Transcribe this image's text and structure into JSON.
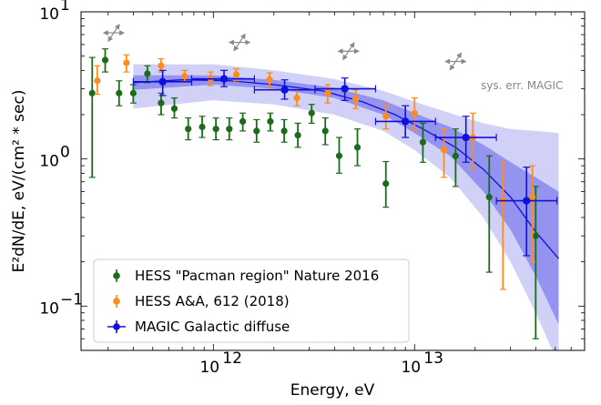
{
  "chart_data": {
    "type": "scatter",
    "xlabel": "Energy, eV",
    "ylabel": "E²dN/dE, eV/(cm² * sec)",
    "xscale": "log",
    "yscale": "log",
    "xlim": [
      220000000000.0,
      70000000000000.0
    ],
    "ylim": [
      0.05,
      10
    ],
    "x_ticks": [
      {
        "value": 1000000000000.0,
        "label": "10",
        "exp": "12"
      },
      {
        "value": 10000000000000.0,
        "label": "10",
        "exp": "13"
      }
    ],
    "y_ticks": [
      {
        "value": 0.1,
        "label": "10",
        "exp": "−1"
      },
      {
        "value": 1,
        "label": "10",
        "exp": "0"
      },
      {
        "value": 10,
        "label": "10",
        "exp": "1"
      }
    ],
    "legend_position": "lower-left",
    "annotation": "sys. err. MAGIC",
    "series": [
      {
        "name": "HESS \"Pacman region\" Nature 2016",
        "color": "#1a6b1a",
        "points": [
          {
            "x": 250000000000.0,
            "y": 2.8,
            "ylo": 0.75,
            "yhi": 4.9
          },
          {
            "x": 290000000000.0,
            "y": 4.7,
            "ylo": 3.9,
            "yhi": 5.6
          },
          {
            "x": 340000000000.0,
            "y": 2.8,
            "ylo": 2.3,
            "yhi": 3.4
          },
          {
            "x": 400000000000.0,
            "y": 2.8,
            "ylo": 2.4,
            "yhi": 3.2
          },
          {
            "x": 470000000000.0,
            "y": 3.8,
            "ylo": 3.3,
            "yhi": 4.3
          },
          {
            "x": 550000000000.0,
            "y": 2.4,
            "ylo": 2.0,
            "yhi": 2.8
          },
          {
            "x": 640000000000.0,
            "y": 2.2,
            "ylo": 1.9,
            "yhi": 2.6
          },
          {
            "x": 750000000000.0,
            "y": 1.6,
            "ylo": 1.35,
            "yhi": 1.9
          },
          {
            "x": 880000000000.0,
            "y": 1.65,
            "ylo": 1.4,
            "yhi": 1.95
          },
          {
            "x": 1030000000000.0,
            "y": 1.6,
            "ylo": 1.35,
            "yhi": 1.9
          },
          {
            "x": 1200000000000.0,
            "y": 1.6,
            "ylo": 1.35,
            "yhi": 1.9
          },
          {
            "x": 1400000000000.0,
            "y": 1.8,
            "ylo": 1.55,
            "yhi": 2.05
          },
          {
            "x": 1640000000000.0,
            "y": 1.55,
            "ylo": 1.3,
            "yhi": 1.85
          },
          {
            "x": 1920000000000.0,
            "y": 1.8,
            "ylo": 1.55,
            "yhi": 2.05
          },
          {
            "x": 2250000000000.0,
            "y": 1.55,
            "ylo": 1.3,
            "yhi": 1.85
          },
          {
            "x": 2630000000000.0,
            "y": 1.45,
            "ylo": 1.2,
            "yhi": 1.75
          },
          {
            "x": 3080000000000.0,
            "y": 2.05,
            "ylo": 1.75,
            "yhi": 2.35
          },
          {
            "x": 3600000000000.0,
            "y": 1.55,
            "ylo": 1.25,
            "yhi": 1.9
          },
          {
            "x": 4220000000000.0,
            "y": 1.05,
            "ylo": 0.8,
            "yhi": 1.4
          },
          {
            "x": 5200000000000.0,
            "y": 1.2,
            "ylo": 0.9,
            "yhi": 1.6
          },
          {
            "x": 7200000000000.0,
            "y": 0.68,
            "ylo": 0.47,
            "yhi": 0.96
          },
          {
            "x": 11000000000000.0,
            "y": 1.3,
            "ylo": 0.95,
            "yhi": 1.75
          },
          {
            "x": 16000000000000.0,
            "y": 1.05,
            "ylo": 0.65,
            "yhi": 1.6
          },
          {
            "x": 23500000000000.0,
            "y": 0.55,
            "ylo": 0.17,
            "yhi": 1.05
          },
          {
            "x": 40000000000000.0,
            "y": 0.3,
            "ylo": 0.06,
            "yhi": 0.65
          }
        ]
      },
      {
        "name": "HESS A&A, 612 (2018)",
        "color": "#ff8c1a",
        "points": [
          {
            "x": 265000000000.0,
            "y": 3.4,
            "ylo": 2.75,
            "yhi": 4.3
          },
          {
            "x": 370000000000.0,
            "y": 4.5,
            "ylo": 3.9,
            "yhi": 5.1
          },
          {
            "x": 550000000000.0,
            "y": 4.3,
            "ylo": 3.9,
            "yhi": 4.8
          },
          {
            "x": 720000000000.0,
            "y": 3.65,
            "ylo": 3.3,
            "yhi": 4.0
          },
          {
            "x": 970000000000.0,
            "y": 3.5,
            "ylo": 3.15,
            "yhi": 3.9
          },
          {
            "x": 1300000000000.0,
            "y": 3.75,
            "ylo": 3.4,
            "yhi": 4.1
          },
          {
            "x": 1900000000000.0,
            "y": 3.45,
            "ylo": 3.05,
            "yhi": 3.85
          },
          {
            "x": 2600000000000.0,
            "y": 2.6,
            "ylo": 2.3,
            "yhi": 2.95
          },
          {
            "x": 3700000000000.0,
            "y": 2.8,
            "ylo": 2.4,
            "yhi": 3.2
          },
          {
            "x": 5100000000000.0,
            "y": 2.55,
            "ylo": 2.2,
            "yhi": 2.95
          },
          {
            "x": 7200000000000.0,
            "y": 1.95,
            "ylo": 1.6,
            "yhi": 2.35
          },
          {
            "x": 10000000000000.0,
            "y": 2.05,
            "ylo": 1.6,
            "yhi": 2.6
          },
          {
            "x": 14000000000000.0,
            "y": 1.15,
            "ylo": 0.75,
            "yhi": 1.6
          },
          {
            "x": 19500000000000.0,
            "y": 1.4,
            "ylo": 0.85,
            "yhi": 2.05
          },
          {
            "x": 27500000000000.0,
            "y": 0.52,
            "ylo": 0.13,
            "yhi": 0.95
          },
          {
            "x": 38500000000000.0,
            "y": 0.55,
            "ylo": 0.2,
            "yhi": 0.9
          }
        ]
      },
      {
        "name": "MAGIC Galactic diffuse",
        "color": "#1010dd",
        "points": [
          {
            "x": 560000000000.0,
            "y": 3.35,
            "xlo": 400000000000.0,
            "xhi": 780000000000.0,
            "ylo": 2.7,
            "yhi": 4.0
          },
          {
            "x": 1130000000000.0,
            "y": 3.5,
            "xlo": 780000000000.0,
            "xhi": 1600000000000.0,
            "ylo": 3.1,
            "yhi": 4.0
          },
          {
            "x": 2260000000000.0,
            "y": 2.95,
            "xlo": 1600000000000.0,
            "xhi": 3200000000000.0,
            "ylo": 2.55,
            "yhi": 3.45
          },
          {
            "x": 4500000000000.0,
            "y": 3.0,
            "xlo": 3200000000000.0,
            "xhi": 6400000000000.0,
            "ylo": 2.5,
            "yhi": 3.55
          },
          {
            "x": 9000000000000.0,
            "y": 1.8,
            "xlo": 6400000000000.0,
            "xhi": 12700000000000.0,
            "ylo": 1.4,
            "yhi": 2.3
          },
          {
            "x": 18000000000000.0,
            "y": 1.4,
            "xlo": 12700000000000.0,
            "xhi": 25500000000000.0,
            "ylo": 0.95,
            "yhi": 1.95
          },
          {
            "x": 36000000000000.0,
            "y": 0.52,
            "xlo": 25500000000000.0,
            "xhi": 51000000000000.0,
            "ylo": 0.22,
            "yhi": 0.88
          }
        ]
      }
    ],
    "fit_curve": [
      {
        "x": 400000000000.0,
        "y": 3.3
      },
      {
        "x": 700000000000.0,
        "y": 3.45
      },
      {
        "x": 1200000000000.0,
        "y": 3.4
      },
      {
        "x": 2000000000000.0,
        "y": 3.2
      },
      {
        "x": 3500000000000.0,
        "y": 2.9
      },
      {
        "x": 5500000000000.0,
        "y": 2.45
      },
      {
        "x": 8000000000000.0,
        "y": 2.0
      },
      {
        "x": 11000000000000.0,
        "y": 1.6
      },
      {
        "x": 16000000000000.0,
        "y": 1.2
      },
      {
        "x": 22000000000000.0,
        "y": 0.85
      },
      {
        "x": 30000000000000.0,
        "y": 0.55
      },
      {
        "x": 40000000000000.0,
        "y": 0.32
      },
      {
        "x": 52000000000000.0,
        "y": 0.21
      }
    ],
    "inner_band": [
      {
        "x": 400000000000.0,
        "lo": 2.95,
        "hi": 3.7
      },
      {
        "x": 1000000000000.0,
        "lo": 3.2,
        "hi": 3.7
      },
      {
        "x": 2000000000000.0,
        "lo": 3.0,
        "hi": 3.45
      },
      {
        "x": 4000000000000.0,
        "lo": 2.6,
        "hi": 3.05
      },
      {
        "x": 7000000000000.0,
        "lo": 2.0,
        "hi": 2.5
      },
      {
        "x": 10000000000000.0,
        "lo": 1.5,
        "hi": 2.05
      },
      {
        "x": 15000000000000.0,
        "lo": 1.05,
        "hi": 1.65
      },
      {
        "x": 22000000000000.0,
        "lo": 0.6,
        "hi": 1.25
      },
      {
        "x": 30000000000000.0,
        "lo": 0.33,
        "hi": 0.95
      },
      {
        "x": 40000000000000.0,
        "lo": 0.16,
        "hi": 0.75
      },
      {
        "x": 52000000000000.0,
        "lo": 0.075,
        "hi": 0.6
      }
    ],
    "outer_band": [
      {
        "x": 400000000000.0,
        "lo": 2.2,
        "hi": 4.4
      },
      {
        "x": 1000000000000.0,
        "lo": 2.5,
        "hi": 4.4
      },
      {
        "x": 2000000000000.0,
        "lo": 2.35,
        "hi": 4.0
      },
      {
        "x": 4000000000000.0,
        "lo": 2.0,
        "hi": 3.5
      },
      {
        "x": 7000000000000.0,
        "lo": 1.55,
        "hi": 2.9
      },
      {
        "x": 10000000000000.0,
        "lo": 1.15,
        "hi": 2.45
      },
      {
        "x": 15000000000000.0,
        "lo": 0.75,
        "hi": 2.05
      },
      {
        "x": 22000000000000.0,
        "lo": 0.4,
        "hi": 1.75
      },
      {
        "x": 30000000000000.0,
        "lo": 0.2,
        "hi": 1.6
      },
      {
        "x": 40000000000000.0,
        "lo": 0.09,
        "hi": 1.55
      },
      {
        "x": 52000000000000.0,
        "lo": 0.04,
        "hi": 1.5
      }
    ],
    "band_colors": {
      "outer": "#c9c9f6",
      "inner": "#8484ee",
      "curve": "#1010dd"
    },
    "sys_err_arrows": [
      {
        "x": 320000000000.0,
        "y": 7.2
      },
      {
        "x": 1350000000000.0,
        "y": 6.2
      },
      {
        "x": 4700000000000.0,
        "y": 5.4
      },
      {
        "x": 16000000000000.0,
        "y": 4.6
      }
    ]
  }
}
